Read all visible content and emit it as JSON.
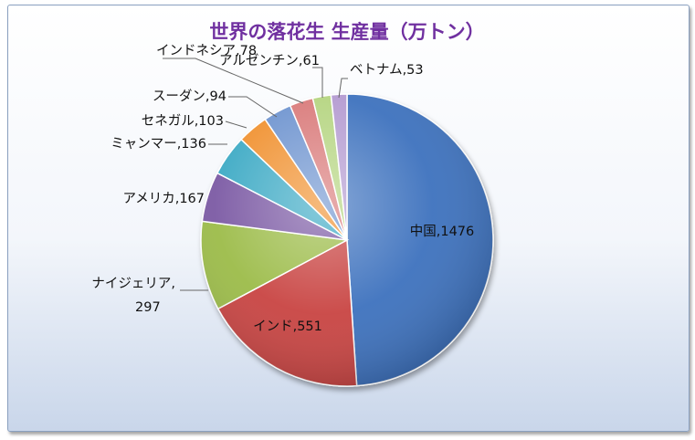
{
  "colors": {
    "title": "#7030a0",
    "background_top": "#ffffff",
    "background_bottom": "#c9d6ea",
    "slices": [
      "#3a6fbd",
      "#c8433f",
      "#9bbb47",
      "#7a58a3",
      "#3ba9c4",
      "#f0902d",
      "#6d93cf",
      "#d97979",
      "#b4d47f",
      "#b39ad0"
    ]
  },
  "chart_data": {
    "type": "pie",
    "title": "世界の落花生 生産量（万トン）",
    "legend": "none",
    "label_separator": ",",
    "slices": [
      {
        "name": "中国",
        "value": 1476
      },
      {
        "name": "インド",
        "value": 551
      },
      {
        "name": "ナイジェリア",
        "value": 297
      },
      {
        "name": "アメリカ",
        "value": 167
      },
      {
        "name": "ミャンマー",
        "value": 136
      },
      {
        "name": "セネガル",
        "value": 103
      },
      {
        "name": "スーダン",
        "value": 94
      },
      {
        "name": "インドネシア",
        "value": 78
      },
      {
        "name": "アルゼンチン",
        "value": 61
      },
      {
        "name": "ベトナム",
        "value": 53
      }
    ]
  }
}
